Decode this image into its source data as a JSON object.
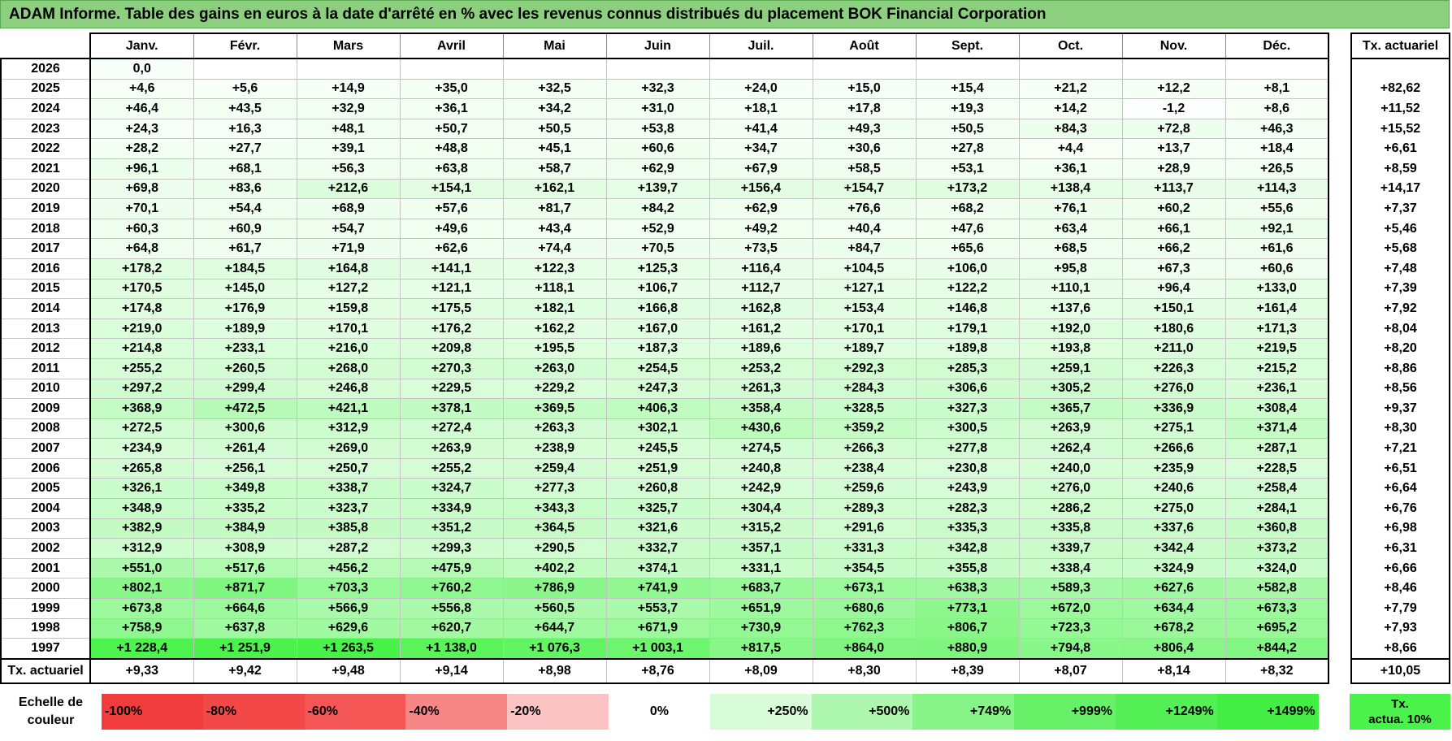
{
  "title": "ADAM Informe. Table des gains en euros à la date d'arrêté en % avec les revenus connus distribués du placement BOK Financial Corporation",
  "months": [
    "Janv.",
    "Févr.",
    "Mars",
    "Avril",
    "Mai",
    "Juin",
    "Juil.",
    "Août",
    "Sept.",
    "Oct.",
    "Nov.",
    "Déc."
  ],
  "side_header": "Tx. actuariel",
  "rows": [
    {
      "year": "2026",
      "values": [
        "0,0",
        "",
        "",
        "",
        "",
        "",
        "",
        "",
        "",
        "",
        "",
        ""
      ],
      "rate": ""
    },
    {
      "year": "2025",
      "values": [
        "+4,6",
        "+5,6",
        "+14,9",
        "+35,0",
        "+32,5",
        "+32,3",
        "+24,0",
        "+15,0",
        "+15,4",
        "+21,2",
        "+12,2",
        "+8,1"
      ],
      "rate": "+82,62"
    },
    {
      "year": "2024",
      "values": [
        "+46,4",
        "+43,5",
        "+32,9",
        "+36,1",
        "+34,2",
        "+31,0",
        "+18,1",
        "+17,8",
        "+19,3",
        "+14,2",
        "-1,2",
        "+8,6"
      ],
      "rate": "+11,52"
    },
    {
      "year": "2023",
      "values": [
        "+24,3",
        "+16,3",
        "+48,1",
        "+50,7",
        "+50,5",
        "+53,8",
        "+41,4",
        "+49,3",
        "+50,5",
        "+84,3",
        "+72,8",
        "+46,3"
      ],
      "rate": "+15,52"
    },
    {
      "year": "2022",
      "values": [
        "+28,2",
        "+27,7",
        "+39,1",
        "+48,8",
        "+45,1",
        "+60,6",
        "+34,7",
        "+30,6",
        "+27,8",
        "+4,4",
        "+13,7",
        "+18,4"
      ],
      "rate": "+6,61"
    },
    {
      "year": "2021",
      "values": [
        "+96,1",
        "+68,1",
        "+56,3",
        "+63,8",
        "+58,7",
        "+62,9",
        "+67,9",
        "+58,5",
        "+53,1",
        "+36,1",
        "+28,9",
        "+26,5"
      ],
      "rate": "+8,59"
    },
    {
      "year": "2020",
      "values": [
        "+69,8",
        "+83,6",
        "+212,6",
        "+154,1",
        "+162,1",
        "+139,7",
        "+156,4",
        "+154,7",
        "+173,2",
        "+138,4",
        "+113,7",
        "+114,3"
      ],
      "rate": "+14,17"
    },
    {
      "year": "2019",
      "values": [
        "+70,1",
        "+54,4",
        "+68,9",
        "+57,6",
        "+81,7",
        "+84,2",
        "+62,9",
        "+76,6",
        "+68,2",
        "+76,1",
        "+60,2",
        "+55,6"
      ],
      "rate": "+7,37"
    },
    {
      "year": "2018",
      "values": [
        "+60,3",
        "+60,9",
        "+54,7",
        "+49,6",
        "+43,4",
        "+52,9",
        "+49,2",
        "+40,4",
        "+47,6",
        "+63,4",
        "+66,1",
        "+92,1"
      ],
      "rate": "+5,46"
    },
    {
      "year": "2017",
      "values": [
        "+64,8",
        "+61,7",
        "+71,9",
        "+62,6",
        "+74,4",
        "+70,5",
        "+73,5",
        "+84,7",
        "+65,6",
        "+68,5",
        "+66,2",
        "+61,6"
      ],
      "rate": "+5,68"
    },
    {
      "year": "2016",
      "values": [
        "+178,2",
        "+184,5",
        "+164,8",
        "+141,1",
        "+122,3",
        "+125,3",
        "+116,4",
        "+104,5",
        "+106,0",
        "+95,8",
        "+67,3",
        "+60,6"
      ],
      "rate": "+7,48"
    },
    {
      "year": "2015",
      "values": [
        "+170,5",
        "+145,0",
        "+127,2",
        "+121,1",
        "+118,1",
        "+106,7",
        "+112,7",
        "+127,1",
        "+122,2",
        "+110,1",
        "+96,4",
        "+133,0"
      ],
      "rate": "+7,39"
    },
    {
      "year": "2014",
      "values": [
        "+174,8",
        "+176,9",
        "+159,8",
        "+175,5",
        "+182,1",
        "+166,8",
        "+162,8",
        "+153,4",
        "+146,8",
        "+137,6",
        "+150,1",
        "+161,4"
      ],
      "rate": "+7,92"
    },
    {
      "year": "2013",
      "values": [
        "+219,0",
        "+189,9",
        "+170,1",
        "+176,2",
        "+162,2",
        "+167,0",
        "+161,2",
        "+170,1",
        "+179,1",
        "+192,0",
        "+180,6",
        "+171,3"
      ],
      "rate": "+8,04"
    },
    {
      "year": "2012",
      "values": [
        "+214,8",
        "+233,1",
        "+216,0",
        "+209,8",
        "+195,5",
        "+187,3",
        "+189,6",
        "+189,7",
        "+189,8",
        "+193,8",
        "+211,0",
        "+219,5"
      ],
      "rate": "+8,20"
    },
    {
      "year": "2011",
      "values": [
        "+255,2",
        "+260,5",
        "+268,0",
        "+270,3",
        "+263,0",
        "+254,5",
        "+253,2",
        "+292,3",
        "+285,3",
        "+259,1",
        "+226,3",
        "+215,2"
      ],
      "rate": "+8,86"
    },
    {
      "year": "2010",
      "values": [
        "+297,2",
        "+299,4",
        "+246,8",
        "+229,5",
        "+229,2",
        "+247,3",
        "+261,3",
        "+284,3",
        "+306,6",
        "+305,2",
        "+276,0",
        "+236,1"
      ],
      "rate": "+8,56"
    },
    {
      "year": "2009",
      "values": [
        "+368,9",
        "+472,5",
        "+421,1",
        "+378,1",
        "+369,5",
        "+406,3",
        "+358,4",
        "+328,5",
        "+327,3",
        "+365,7",
        "+336,9",
        "+308,4"
      ],
      "rate": "+9,37"
    },
    {
      "year": "2008",
      "values": [
        "+272,5",
        "+300,6",
        "+312,9",
        "+272,4",
        "+263,3",
        "+302,1",
        "+430,6",
        "+359,2",
        "+300,5",
        "+263,9",
        "+275,1",
        "+371,4"
      ],
      "rate": "+8,30"
    },
    {
      "year": "2007",
      "values": [
        "+234,9",
        "+261,4",
        "+269,0",
        "+263,9",
        "+238,9",
        "+245,5",
        "+274,5",
        "+266,3",
        "+277,8",
        "+262,4",
        "+266,6",
        "+287,1"
      ],
      "rate": "+7,21"
    },
    {
      "year": "2006",
      "values": [
        "+265,8",
        "+256,1",
        "+250,7",
        "+255,2",
        "+259,4",
        "+251,9",
        "+240,8",
        "+238,4",
        "+230,8",
        "+240,0",
        "+235,9",
        "+228,5"
      ],
      "rate": "+6,51"
    },
    {
      "year": "2005",
      "values": [
        "+326,1",
        "+349,8",
        "+338,7",
        "+324,7",
        "+277,3",
        "+260,8",
        "+242,9",
        "+259,6",
        "+243,9",
        "+276,0",
        "+240,6",
        "+258,4"
      ],
      "rate": "+6,64"
    },
    {
      "year": "2004",
      "values": [
        "+348,9",
        "+335,2",
        "+323,7",
        "+334,9",
        "+343,3",
        "+325,7",
        "+304,4",
        "+289,3",
        "+282,3",
        "+286,2",
        "+275,0",
        "+284,1"
      ],
      "rate": "+6,76"
    },
    {
      "year": "2003",
      "values": [
        "+382,9",
        "+384,9",
        "+385,8",
        "+351,2",
        "+364,5",
        "+321,6",
        "+315,2",
        "+291,6",
        "+335,3",
        "+335,8",
        "+337,6",
        "+360,8"
      ],
      "rate": "+6,98"
    },
    {
      "year": "2002",
      "values": [
        "+312,9",
        "+308,9",
        "+287,2",
        "+299,3",
        "+290,5",
        "+332,7",
        "+357,1",
        "+331,3",
        "+342,8",
        "+339,7",
        "+342,4",
        "+373,2"
      ],
      "rate": "+6,31"
    },
    {
      "year": "2001",
      "values": [
        "+551,0",
        "+517,6",
        "+456,2",
        "+475,9",
        "+402,2",
        "+374,1",
        "+331,1",
        "+354,5",
        "+355,8",
        "+338,4",
        "+324,9",
        "+324,0"
      ],
      "rate": "+6,66"
    },
    {
      "year": "2000",
      "values": [
        "+802,1",
        "+871,7",
        "+703,3",
        "+760,2",
        "+786,9",
        "+741,9",
        "+683,7",
        "+673,1",
        "+638,3",
        "+589,3",
        "+627,6",
        "+582,8"
      ],
      "rate": "+8,46"
    },
    {
      "year": "1999",
      "values": [
        "+673,8",
        "+664,6",
        "+566,9",
        "+556,8",
        "+560,5",
        "+553,7",
        "+651,9",
        "+680,6",
        "+773,1",
        "+672,0",
        "+634,4",
        "+673,3"
      ],
      "rate": "+7,79"
    },
    {
      "year": "1998",
      "values": [
        "+758,9",
        "+637,8",
        "+629,6",
        "+620,7",
        "+644,7",
        "+671,9",
        "+730,9",
        "+762,3",
        "+806,7",
        "+723,3",
        "+678,2",
        "+695,2"
      ],
      "rate": "+7,93"
    },
    {
      "year": "1997",
      "values": [
        "+1 228,4",
        "+1 251,9",
        "+1 263,5",
        "+1 138,0",
        "+1 076,3",
        "+1 003,1",
        "+817,5",
        "+864,0",
        "+880,9",
        "+794,8",
        "+806,4",
        "+844,2"
      ],
      "rate": "+8,66"
    }
  ],
  "annual_row": {
    "label": "Tx. actuariel",
    "values": [
      "+9,33",
      "+9,42",
      "+9,48",
      "+9,14",
      "+8,98",
      "+8,76",
      "+8,09",
      "+8,30",
      "+8,39",
      "+8,07",
      "+8,14",
      "+8,32"
    ],
    "total": "+10,05"
  },
  "scale": {
    "label_line1": "Echelle de",
    "label_line2": "couleur",
    "cells": [
      {
        "label": "-100%",
        "color": "#f03c3c"
      },
      {
        "label": "-80%",
        "color": "#f24848"
      },
      {
        "label": "-60%",
        "color": "#f45656"
      },
      {
        "label": "-40%",
        "color": "#f78787"
      },
      {
        "label": "-20%",
        "color": "#fbc3c3"
      },
      {
        "label": "0%",
        "color": "#ffffff"
      },
      {
        "label": "+250%",
        "color": "#d8fbd8"
      },
      {
        "label": "+500%",
        "color": "#aef7ae"
      },
      {
        "label": "+749%",
        "color": "#86f486"
      },
      {
        "label": "+999%",
        "color": "#68f168"
      },
      {
        "label": "+1249%",
        "color": "#54ef54"
      },
      {
        "label": "+1499%",
        "color": "#44ed44"
      }
    ],
    "actua_line1": "Tx.",
    "actua_line2": "actua. 10%",
    "actua_color": "#4cf24c"
  }
}
